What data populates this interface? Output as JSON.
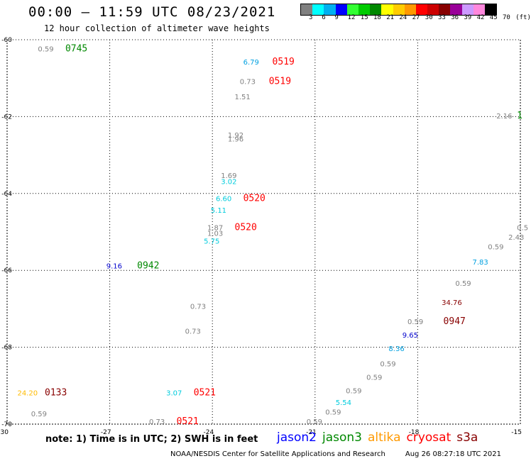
{
  "header": {
    "title": "00:00 – 11:59 UTC 08/23/2021",
    "subtitle": "12 hour collection of altimeter wave heights"
  },
  "legend": {
    "colors": [
      "#808080",
      "#00ffff",
      "#00b0f0",
      "#0000ff",
      "#33ff33",
      "#00cc00",
      "#008800",
      "#ffff00",
      "#ffcc00",
      "#ff9900",
      "#ff0000",
      "#cc0000",
      "#880000",
      "#990099",
      "#cc99ff",
      "#ff88dd",
      "#000000"
    ],
    "labels": [
      "3",
      "6",
      "9",
      "12",
      "15",
      "18",
      "21",
      "24",
      "27",
      "30",
      "33",
      "36",
      "39",
      "42",
      "45",
      "70",
      "(ft)"
    ]
  },
  "map": {
    "lat_range": [
      -70,
      -60
    ],
    "lon_range": [
      -30,
      -15
    ],
    "lat_ticks": [
      "-60",
      "-62",
      "-64",
      "-66",
      "-68",
      "-70"
    ],
    "lon_ticks": [
      "-30",
      "-27",
      "-24",
      "-21",
      "-18",
      "-15"
    ]
  },
  "observations": [
    {
      "text": "0.59",
      "color": "#808080",
      "lon": -29.1,
      "lat": -60.3
    },
    {
      "text": "0745",
      "color": "#008800",
      "lon": -28.3,
      "lat": -60.3,
      "time": true
    },
    {
      "text": "6.79",
      "color": "#00a0e0",
      "lon": -23.1,
      "lat": -60.65
    },
    {
      "text": "0519",
      "color": "#ff0000",
      "lon": -22.25,
      "lat": -60.65,
      "time": true
    },
    {
      "text": "0.73",
      "color": "#808080",
      "lon": -23.2,
      "lat": -61.15
    },
    {
      "text": "0519",
      "color": "#ff0000",
      "lon": -22.35,
      "lat": -61.15,
      "time": true
    },
    {
      "text": "1.51",
      "color": "#808080",
      "lon": -23.35,
      "lat": -61.55
    },
    {
      "text": "2.16",
      "color": "#808080",
      "lon": -15.7,
      "lat": -62.05
    },
    {
      "text": "1",
      "color": "#008800",
      "lon": -15.1,
      "lat": -62.05,
      "time": true
    },
    {
      "text": "1.92",
      "color": "#808080",
      "lon": -23.55,
      "lat": -62.55
    },
    {
      "text": "1.96",
      "color": "#808080",
      "lon": -23.55,
      "lat": -62.65
    },
    {
      "text": "1.69",
      "color": "#808080",
      "lon": -23.75,
      "lat": -63.6
    },
    {
      "text": "3.02",
      "color": "#00ccdd",
      "lon": -23.75,
      "lat": -63.75
    },
    {
      "text": "6.60",
      "color": "#00ccdd",
      "lon": -23.9,
      "lat": -64.2
    },
    {
      "text": "0520",
      "color": "#ff0000",
      "lon": -23.1,
      "lat": -64.2,
      "time": true
    },
    {
      "text": "5.11",
      "color": "#00ccdd",
      "lon": -24.05,
      "lat": -64.5
    },
    {
      "text": "1.87",
      "color": "#808080",
      "lon": -24.15,
      "lat": -64.95
    },
    {
      "text": "0520",
      "color": "#ff0000",
      "lon": -23.35,
      "lat": -64.95,
      "time": true
    },
    {
      "text": "1.03",
      "color": "#808080",
      "lon": -24.15,
      "lat": -65.1
    },
    {
      "text": "5.75",
      "color": "#00ccdd",
      "lon": -24.25,
      "lat": -65.3
    },
    {
      "text": "0.5",
      "color": "#808080",
      "lon": -15.1,
      "lat": -64.95
    },
    {
      "text": "2.43",
      "color": "#808080",
      "lon": -15.35,
      "lat": -65.2
    },
    {
      "text": "0.59",
      "color": "#808080",
      "lon": -15.95,
      "lat": -65.45
    },
    {
      "text": "7.83",
      "color": "#00a0e0",
      "lon": -16.4,
      "lat": -65.85
    },
    {
      "text": "9.16",
      "color": "#0000cc",
      "lon": -27.1,
      "lat": -65.95
    },
    {
      "text": "0942",
      "color": "#008800",
      "lon": -26.2,
      "lat": -65.95,
      "time": true
    },
    {
      "text": "0.59",
      "color": "#808080",
      "lon": -16.9,
      "lat": -66.4
    },
    {
      "text": "34.76",
      "color": "#880000",
      "lon": -17.3,
      "lat": -66.9
    },
    {
      "text": "0.73",
      "color": "#808080",
      "lon": -24.65,
      "lat": -67.0
    },
    {
      "text": "0.59",
      "color": "#808080",
      "lon": -18.3,
      "lat": -67.4
    },
    {
      "text": "0947",
      "color": "#880000",
      "lon": -17.25,
      "lat": -67.4,
      "time": true
    },
    {
      "text": "0.73",
      "color": "#808080",
      "lon": -24.8,
      "lat": -67.65
    },
    {
      "text": "9.65",
      "color": "#0000cc",
      "lon": -18.45,
      "lat": -67.75
    },
    {
      "text": "8.36",
      "color": "#00a0e0",
      "lon": -18.85,
      "lat": -68.1
    },
    {
      "text": "0.59",
      "color": "#808080",
      "lon": -19.1,
      "lat": -68.5
    },
    {
      "text": "0.59",
      "color": "#808080",
      "lon": -19.5,
      "lat": -68.85
    },
    {
      "text": "24.20",
      "color": "#ffbb00",
      "lon": -29.7,
      "lat": -69.25
    },
    {
      "text": "0133",
      "color": "#880000",
      "lon": -28.9,
      "lat": -69.25,
      "time": true
    },
    {
      "text": "3.07",
      "color": "#00ccdd",
      "lon": -25.35,
      "lat": -69.25
    },
    {
      "text": "0521",
      "color": "#ff0000",
      "lon": -24.55,
      "lat": -69.25,
      "time": true
    },
    {
      "text": "0.59",
      "color": "#808080",
      "lon": -20.1,
      "lat": -69.2
    },
    {
      "text": "5.54",
      "color": "#00ccdd",
      "lon": -20.4,
      "lat": -69.5
    },
    {
      "text": "0.59",
      "color": "#808080",
      "lon": -20.7,
      "lat": -69.75
    },
    {
      "text": "0.59",
      "color": "#808080",
      "lon": -29.3,
      "lat": -69.8
    },
    {
      "text": "0.73",
      "color": "#808080",
      "lon": -25.85,
      "lat": -70.0
    },
    {
      "text": "0521",
      "color": "#ff0000",
      "lon": -25.05,
      "lat": -70.0,
      "time": true
    },
    {
      "text": "0.59",
      "color": "#808080",
      "lon": -21.25,
      "lat": -70.0
    }
  ],
  "footer": {
    "note": "note: 1) Time is in UTC; 2) SWH is in feet",
    "satellites": [
      {
        "name": "jason2",
        "color": "#0000ff"
      },
      {
        "name": "jason3",
        "color": "#008800"
      },
      {
        "name": "altika",
        "color": "#ff9900"
      },
      {
        "name": "cryosat",
        "color": "#ff0000"
      },
      {
        "name": "s3a",
        "color": "#880000"
      }
    ],
    "credit": "NOAA/NESDIS Center for Satellite Applications and Research",
    "timestamp": "Aug 26 08:27:18 UTC 2021"
  }
}
